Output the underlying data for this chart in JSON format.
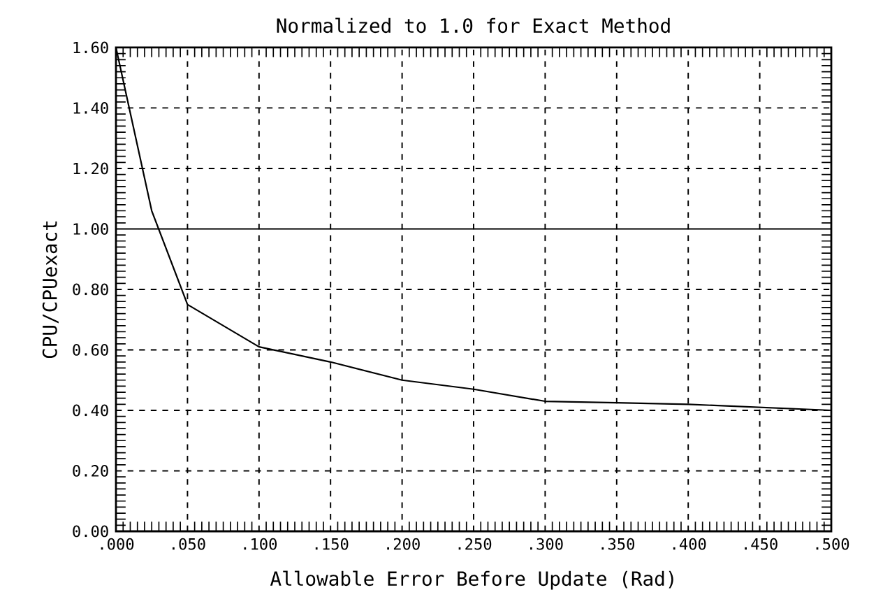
{
  "chart_data": {
    "type": "line",
    "title": "Normalized to 1.0 for Exact Method",
    "xlabel": "Allowable Error Before Update (Rad)",
    "ylabel": "CPU/CPUexact",
    "series": [
      {
        "color": "#000000",
        "x": [
          0,
          0.025,
          0.05,
          0.1,
          0.15,
          0.2,
          0.25,
          0.3,
          0.35,
          0.4,
          0.5
        ],
        "values": [
          1.6,
          1.06,
          0.75,
          0.61,
          0.56,
          0.5,
          0.47,
          0.43,
          0.425,
          0.42,
          0.4
        ]
      },
      {
        "color": "#000000",
        "x": [
          0,
          0.5
        ],
        "values": [
          1.0,
          1.0
        ]
      }
    ],
    "xlim": [
      0,
      0.5
    ],
    "ylim": [
      0,
      1.6
    ],
    "xticks": [
      {
        "value": 0,
        "label": ".000"
      },
      {
        "value": 0.05,
        "label": ".050"
      },
      {
        "value": 0.1,
        "label": ".100"
      },
      {
        "value": 0.15,
        "label": ".150"
      },
      {
        "value": 0.2,
        "label": ".200"
      },
      {
        "value": 0.25,
        "label": ".250"
      },
      {
        "value": 0.3,
        "label": ".300"
      },
      {
        "value": 0.35,
        "label": ".350"
      },
      {
        "value": 0.4,
        "label": ".400"
      },
      {
        "value": 0.45,
        "label": ".450"
      },
      {
        "value": 0.5,
        "label": ".500"
      }
    ],
    "yticks": [
      {
        "value": 0,
        "label": "0.00"
      },
      {
        "value": 0.2,
        "label": "0.20"
      },
      {
        "value": 0.4,
        "label": "0.40"
      },
      {
        "value": 0.6,
        "label": "0.60"
      },
      {
        "value": 0.8,
        "label": "0.80"
      },
      {
        "value": 1.0,
        "label": "1.00"
      },
      {
        "value": 1.2,
        "label": "1.20"
      },
      {
        "value": 1.4,
        "label": "1.40"
      },
      {
        "value": 1.6,
        "label": "1.60"
      }
    ],
    "grid": true,
    "line_style": "solid",
    "marker": "none"
  }
}
